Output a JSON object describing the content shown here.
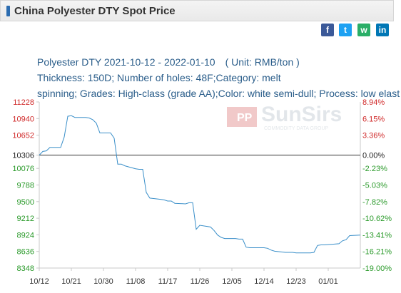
{
  "header": {
    "title": "China Polyester DTY Spot Price"
  },
  "share": {
    "facebook": {
      "icon": "facebook-icon",
      "glyph": "f",
      "color": "#3b5998"
    },
    "twitter": {
      "icon": "twitter-icon",
      "glyph": "t",
      "color": "#1da1f2"
    },
    "wechat": {
      "icon": "wechat-icon",
      "glyph": "w",
      "color": "#2aae67"
    },
    "linkedin": {
      "icon": "linkedin-icon",
      "glyph": "in",
      "color": "#0077b5"
    }
  },
  "info": {
    "line1": "Polyester DTY 2021-10-12 - 2022-01-10",
    "unit": "( Unit: RMB/ton )",
    "line2": "Thickness: 150D; Number of holes: 48F;Category: melt",
    "line3": "spinning; Grades: High-class (grade AA);Color: white semi-dull; Process: low elast"
  },
  "watermark": {
    "brand": "SunSirs",
    "tagline": "COMMODITY DATA GROUP"
  },
  "chart_data": {
    "type": "line",
    "color": "#3a8fc9",
    "base_value": 10306,
    "y_left_ticks": [
      "11228",
      "10940",
      "10652",
      "10306",
      "10076",
      "9788",
      "9500",
      "9212",
      "8924",
      "8636",
      "8348"
    ],
    "y_right_ticks": [
      "8.94%",
      "6.15%",
      "3.36%",
      "0.00%",
      "-2.23%",
      "-5.03%",
      "-7.82%",
      "-10.62%",
      "-13.41%",
      "-16.21%",
      "-19.00%"
    ],
    "x_ticks": [
      "10/12",
      "10/21",
      "10/30",
      "11/08",
      "11/17",
      "11/26",
      "12/05",
      "12/14",
      "12/23",
      "01/01"
    ],
    "ylim": [
      8348,
      11228
    ],
    "x_range": [
      "2021-10-12",
      "2022-01-10"
    ],
    "points": [
      [
        "2021-10-12",
        10306
      ],
      [
        "2021-10-13",
        10370
      ],
      [
        "2021-10-14",
        10380
      ],
      [
        "2021-10-15",
        10440
      ],
      [
        "2021-10-18",
        10440
      ],
      [
        "2021-10-19",
        10620
      ],
      [
        "2021-10-20",
        10980
      ],
      [
        "2021-10-21",
        10990
      ],
      [
        "2021-10-22",
        10960
      ],
      [
        "2021-10-25",
        10960
      ],
      [
        "2021-10-26",
        10950
      ],
      [
        "2021-10-27",
        10920
      ],
      [
        "2021-10-28",
        10860
      ],
      [
        "2021-10-29",
        10690
      ],
      [
        "2021-11-01",
        10690
      ],
      [
        "2021-11-02",
        10600
      ],
      [
        "2021-11-03",
        10150
      ],
      [
        "2021-11-04",
        10150
      ],
      [
        "2021-11-05",
        10120
      ],
      [
        "2021-11-08",
        10070
      ],
      [
        "2021-11-09",
        10060
      ],
      [
        "2021-11-10",
        10060
      ],
      [
        "2021-11-11",
        9660
      ],
      [
        "2021-11-12",
        9560
      ],
      [
        "2021-11-15",
        9540
      ],
      [
        "2021-11-16",
        9530
      ],
      [
        "2021-11-17",
        9510
      ],
      [
        "2021-11-18",
        9510
      ],
      [
        "2021-11-19",
        9470
      ],
      [
        "2021-11-22",
        9460
      ],
      [
        "2021-11-23",
        9480
      ],
      [
        "2021-11-24",
        9480
      ],
      [
        "2021-11-25",
        9020
      ],
      [
        "2021-11-26",
        9090
      ],
      [
        "2021-11-29",
        9060
      ],
      [
        "2021-11-30",
        9000
      ],
      [
        "2021-12-01",
        8920
      ],
      [
        "2021-12-02",
        8880
      ],
      [
        "2021-12-03",
        8860
      ],
      [
        "2021-12-06",
        8860
      ],
      [
        "2021-12-07",
        8850
      ],
      [
        "2021-12-08",
        8850
      ],
      [
        "2021-12-09",
        8710
      ],
      [
        "2021-12-10",
        8700
      ],
      [
        "2021-12-13",
        8700
      ],
      [
        "2021-12-14",
        8700
      ],
      [
        "2021-12-15",
        8690
      ],
      [
        "2021-12-16",
        8660
      ],
      [
        "2021-12-17",
        8640
      ],
      [
        "2021-12-20",
        8620
      ],
      [
        "2021-12-21",
        8620
      ],
      [
        "2021-12-22",
        8620
      ],
      [
        "2021-12-23",
        8610
      ],
      [
        "2021-12-24",
        8610
      ],
      [
        "2021-12-27",
        8610
      ],
      [
        "2021-12-28",
        8620
      ],
      [
        "2021-12-29",
        8740
      ],
      [
        "2021-12-30",
        8750
      ],
      [
        "2021-12-31",
        8750
      ],
      [
        "2022-01-04",
        8770
      ],
      [
        "2022-01-05",
        8820
      ],
      [
        "2022-01-06",
        8840
      ],
      [
        "2022-01-07",
        8910
      ],
      [
        "2022-01-10",
        8920
      ]
    ]
  }
}
